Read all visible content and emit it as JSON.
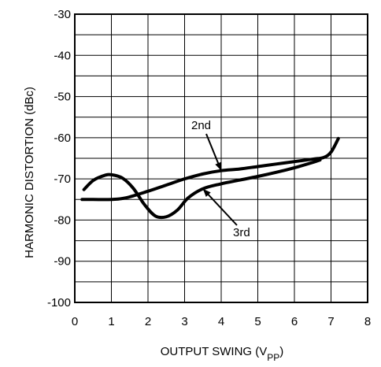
{
  "chart_data": {
    "type": "line",
    "xlabel": "OUTPUT SWING (V",
    "xlabel_subscript": "PP",
    "xlabel_suffix": ")",
    "ylabel": "HARMONIC DISTORTION (dBc)",
    "xlim": [
      0,
      8
    ],
    "ylim": [
      -100,
      -30
    ],
    "x_ticks": [
      0,
      1,
      2,
      3,
      4,
      5,
      6,
      7,
      8
    ],
    "y_ticks": [
      -30,
      -40,
      -50,
      -60,
      -70,
      -80,
      -90,
      -100
    ],
    "grid": true,
    "x_minor_divisions": 8,
    "y_minor_divisions": 14,
    "series": [
      {
        "name": "2nd",
        "color": "#000000",
        "x": [
          0.2,
          0.5,
          1.0,
          1.4,
          2.0,
          2.5,
          3.0,
          3.5,
          4.0,
          4.5,
          5.0,
          5.5,
          6.0,
          6.5,
          6.8,
          7.0,
          7.2
        ],
        "y": [
          -75,
          -75,
          -75,
          -74.6,
          -73,
          -71.5,
          -70,
          -68.8,
          -68,
          -67.6,
          -67,
          -66.4,
          -65.8,
          -65.2,
          -64.8,
          -63.5,
          -60.2
        ]
      },
      {
        "name": "3rd",
        "color": "#000000",
        "x": [
          0.25,
          0.5,
          0.8,
          1.0,
          1.3,
          1.6,
          1.9,
          2.2,
          2.5,
          2.8,
          3.1,
          3.5,
          4.0,
          4.5,
          5.0,
          5.5,
          6.0,
          6.5,
          6.7
        ],
        "y": [
          -72.6,
          -70.4,
          -69.2,
          -69,
          -69.8,
          -72.3,
          -76.2,
          -79,
          -79.2,
          -77.6,
          -74.6,
          -72.4,
          -71.2,
          -70.3,
          -69.4,
          -68.4,
          -67.3,
          -66,
          -65.4
        ]
      }
    ],
    "annotations": [
      {
        "text": "2nd",
        "arrow_to": [
          4.0,
          -68.0
        ]
      },
      {
        "text": "3rd",
        "arrow_to": [
          3.5,
          -72.4
        ]
      }
    ]
  }
}
